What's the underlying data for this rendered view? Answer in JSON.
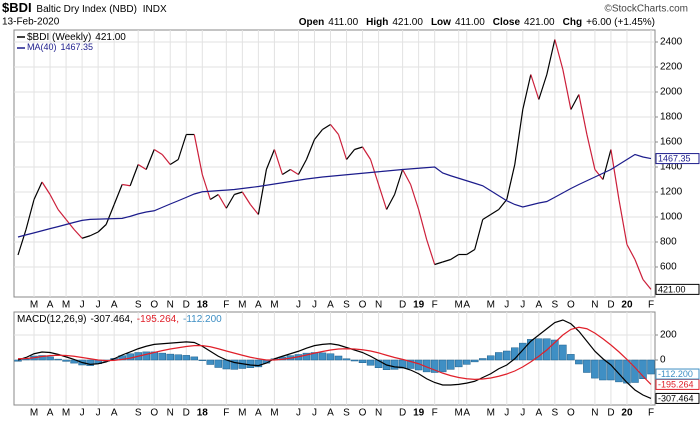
{
  "header": {
    "symbol": "$BDI",
    "name": "Baltic Dry Index (NBD)",
    "exchange": "INDX",
    "date": "13-Feb-2020",
    "quote": [
      {
        "label": "Open",
        "value": "411.00"
      },
      {
        "label": "High",
        "value": "421.00"
      },
      {
        "label": "Low",
        "value": "411.00"
      },
      {
        "label": "Close",
        "value": "421.00"
      },
      {
        "label": "Chg",
        "value": "+6.00 (+1.45%)"
      }
    ],
    "source": "©StockCharts.com"
  },
  "chart_data": [
    {
      "type": "price",
      "categories": [
        null,
        null,
        "M",
        null,
        "A",
        null,
        "M",
        null,
        "J",
        null,
        "J",
        null,
        "A",
        null,
        null,
        "S",
        null,
        "O",
        null,
        "N",
        null,
        "D",
        null,
        "18",
        null,
        null,
        "F",
        null,
        "M",
        null,
        "A",
        null,
        "M",
        null,
        null,
        "J",
        null,
        "J",
        null,
        "A",
        null,
        "S",
        null,
        "O",
        null,
        "N",
        null,
        null,
        "D",
        null,
        "19",
        null,
        "F",
        null,
        null,
        "M",
        "A",
        null,
        null,
        "M",
        null,
        "J",
        null,
        "J",
        null,
        "A",
        null,
        "S",
        null,
        "O",
        null,
        null,
        "N",
        null,
        "D",
        null,
        "20",
        null,
        null,
        "F"
      ],
      "series": [
        {
          "name": "$BDI (Weekly)",
          "last_label": "421.00",
          "up_color": "#000000",
          "down_color": "#cc1f3a",
          "values": [
            696,
            900,
            1140,
            1280,
            1180,
            1060,
            980,
            900,
            830,
            850,
            880,
            940,
            1100,
            1260,
            1250,
            1420,
            1380,
            1540,
            1500,
            1420,
            1460,
            1660,
            1660,
            1340,
            1140,
            1180,
            1070,
            1180,
            1200,
            1100,
            1020,
            1380,
            1540,
            1340,
            1380,
            1340,
            1460,
            1620,
            1700,
            1740,
            1660,
            1460,
            1540,
            1560,
            1460,
            1260,
            1060,
            1180,
            1380,
            1260,
            1060,
            820,
            620,
            640,
            660,
            700,
            700,
            740,
            980,
            1020,
            1060,
            1140,
            1420,
            1860,
            2140,
            1940,
            2140,
            2420,
            2180,
            1860,
            1980,
            1660,
            1380,
            1300,
            1540,
            1140,
            780,
            660,
            500,
            421
          ]
        },
        {
          "name": "MA(40)",
          "last_label": "1467.35",
          "color": "#1c1c8c",
          "values": [
            840,
            857,
            873,
            890,
            907,
            923,
            940,
            957,
            973,
            981,
            983,
            985,
            987,
            989,
            1005,
            1025,
            1040,
            1050,
            1077,
            1104,
            1130,
            1157,
            1184,
            1202,
            1206,
            1211,
            1215,
            1220,
            1228,
            1236,
            1244,
            1254,
            1264,
            1274,
            1284,
            1294,
            1304,
            1312,
            1320,
            1326,
            1332,
            1338,
            1344,
            1350,
            1356,
            1362,
            1368,
            1374,
            1380,
            1385,
            1390,
            1395,
            1400,
            1352,
            1330,
            1310,
            1290,
            1270,
            1250,
            1210,
            1170,
            1130,
            1100,
            1080,
            1096,
            1112,
            1124,
            1158,
            1193,
            1228,
            1260,
            1290,
            1320,
            1350,
            1380,
            1420,
            1460,
            1500,
            1480,
            1467.35
          ]
        }
      ],
      "ylim": [
        360,
        2496
      ],
      "yticks": [
        600,
        800,
        1000,
        1200,
        1400,
        1600,
        1800,
        2000,
        2200,
        2400
      ],
      "grid": true
    },
    {
      "type": "macd",
      "title": "MACD(12,26,9)",
      "categories": [
        null,
        null,
        "M",
        null,
        "A",
        null,
        "M",
        null,
        "J",
        null,
        "J",
        null,
        "A",
        null,
        null,
        "S",
        null,
        "O",
        null,
        "N",
        null,
        "D",
        null,
        "18",
        null,
        null,
        "F",
        null,
        "M",
        null,
        "A",
        null,
        "M",
        null,
        null,
        "J",
        null,
        "J",
        null,
        "A",
        null,
        "S",
        null,
        "O",
        null,
        "N",
        null,
        null,
        "D",
        null,
        "19",
        null,
        "F",
        null,
        null,
        "M",
        "A",
        null,
        null,
        "M",
        null,
        "J",
        null,
        "J",
        null,
        "A",
        null,
        "S",
        null,
        "O",
        null,
        null,
        "N",
        null,
        "D",
        null,
        "20",
        null,
        null,
        "F"
      ],
      "series": [
        {
          "kind": "line",
          "legend_label": "-307.464,",
          "last_label": "-307.464",
          "color": "#000000",
          "values": [
            0,
            20,
            50,
            64,
            60,
            45,
            25,
            5,
            -20,
            -35,
            -30,
            -15,
            10,
            40,
            65,
            90,
            110,
            125,
            130,
            135,
            140,
            145,
            140,
            110,
            70,
            30,
            0,
            -20,
            -30,
            -40,
            -45,
            -25,
            10,
            30,
            50,
            70,
            95,
            115,
            125,
            130,
            120,
            100,
            80,
            60,
            30,
            -5,
            -40,
            -55,
            -60,
            -80,
            -110,
            -150,
            -180,
            -200,
            -200,
            -195,
            -185,
            -170,
            -140,
            -110,
            -70,
            -40,
            10,
            80,
            150,
            200,
            250,
            300,
            320,
            290,
            230,
            150,
            70,
            10,
            -40,
            -110,
            -180,
            -240,
            -280,
            -307.464
          ]
        },
        {
          "kind": "line",
          "legend_label": "-195.264,",
          "last_label": "-195.264",
          "color": "#e0202a",
          "values": [
            10,
            12,
            18,
            28,
            35,
            38,
            36,
            30,
            20,
            10,
            0,
            -5,
            -3,
            5,
            15,
            30,
            45,
            60,
            75,
            88,
            98,
            108,
            115,
            115,
            106,
            90,
            72,
            55,
            38,
            22,
            10,
            0,
            0,
            6,
            15,
            26,
            40,
            55,
            68,
            80,
            88,
            90,
            88,
            82,
            72,
            57,
            38,
            20,
            5,
            -12,
            -30,
            -55,
            -80,
            -105,
            -125,
            -140,
            -150,
            -155,
            -152,
            -144,
            -130,
            -112,
            -88,
            -55,
            -15,
            30,
            80,
            140,
            200,
            245,
            262,
            250,
            215,
            170,
            120,
            65,
            5,
            -60,
            -130,
            -195.264
          ]
        },
        {
          "kind": "bar",
          "legend_label": "-112.200",
          "last_label": "-112.200",
          "color": "#3f8fc4",
          "values": [
            -10,
            8,
            32,
            36,
            25,
            7,
            -11,
            -25,
            -40,
            -45,
            -30,
            -10,
            13,
            35,
            50,
            60,
            65,
            65,
            55,
            47,
            42,
            37,
            25,
            -5,
            -36,
            -60,
            -72,
            -75,
            -68,
            -62,
            -55,
            -25,
            10,
            24,
            35,
            44,
            55,
            60,
            57,
            50,
            32,
            10,
            -8,
            -22,
            -42,
            -62,
            -78,
            -75,
            -65,
            -68,
            -80,
            -95,
            -100,
            -95,
            -75,
            -55,
            -35,
            -15,
            12,
            34,
            60,
            72,
            98,
            135,
            165,
            170,
            170,
            160,
            120,
            45,
            -32,
            -100,
            -145,
            -160,
            -160,
            -175,
            -185,
            -180,
            -150,
            -112.2
          ]
        }
      ],
      "ylim": [
        -360,
        384
      ],
      "yticks": [
        0,
        200
      ],
      "grid": true
    }
  ]
}
